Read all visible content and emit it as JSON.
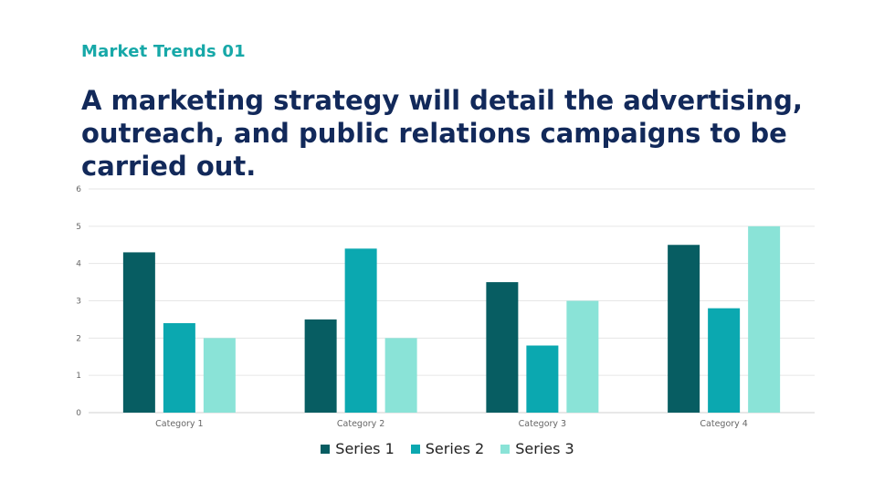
{
  "eyebrow": "Market Trends 01",
  "headline": "A marketing strategy will detail the advertising, outreach, and public relations campaigns to be carried out.",
  "colors": {
    "accent": "#17a8a8",
    "headline": "#12295a"
  },
  "chart_data": {
    "type": "bar",
    "title": "",
    "xlabel": "",
    "ylabel": "",
    "categories": [
      "Category 1",
      "Category 2",
      "Category 3",
      "Category 4"
    ],
    "series": [
      {
        "name": "Series 1",
        "values": [
          4.3,
          2.5,
          3.5,
          4.5
        ],
        "color": "#075d62"
      },
      {
        "name": "Series 2",
        "values": [
          2.4,
          4.4,
          1.8,
          2.8
        ],
        "color": "#0ba8b0"
      },
      {
        "name": "Series 3",
        "values": [
          2.0,
          2.0,
          3.0,
          5.0
        ],
        "color": "#8ae3d7"
      }
    ],
    "ylim": [
      0,
      6
    ],
    "yticks": [
      "0",
      "1",
      "2",
      "3",
      "4",
      "5",
      "6"
    ],
    "grid": true,
    "legend": "bottom-center"
  }
}
